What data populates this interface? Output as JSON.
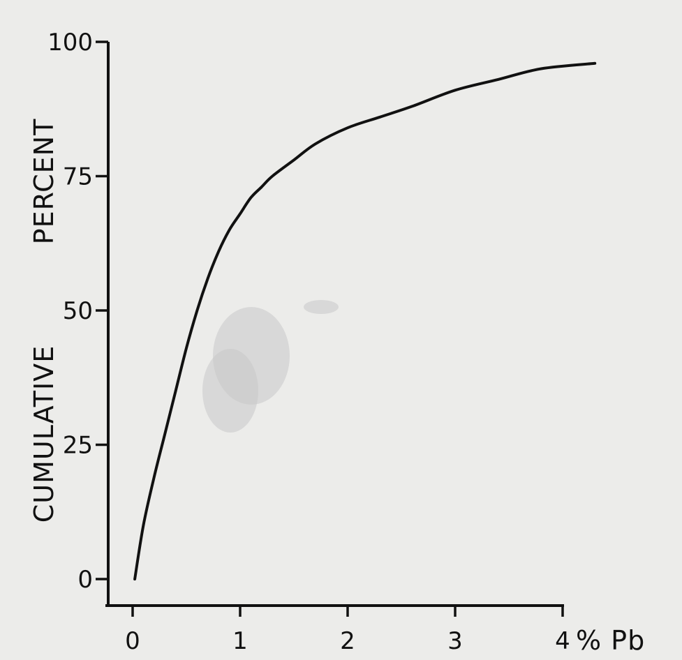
{
  "chart_data": {
    "type": "line",
    "xlabel": "% Pb",
    "ylabel_parts": [
      "CUMULATIVE",
      "PERCENT"
    ],
    "xlim": [
      0,
      4
    ],
    "ylim": [
      0,
      100
    ],
    "x_ticks": [
      0,
      1,
      2,
      3,
      4
    ],
    "x_tick_labels": [
      "0",
      "1",
      "2",
      "3",
      "4"
    ],
    "y_ticks": [
      0,
      25,
      50,
      75,
      100
    ],
    "y_tick_labels": [
      "0",
      "25",
      "50",
      "75",
      "100"
    ],
    "grid": false,
    "series": [
      {
        "x": [
          0.02,
          0.1,
          0.2,
          0.3,
          0.4,
          0.5,
          0.6,
          0.7,
          0.8,
          0.9,
          1.0,
          1.1,
          1.2,
          1.3,
          1.5,
          1.7,
          2.0,
          2.3,
          2.6,
          3.0,
          3.4,
          3.8,
          4.3
        ],
        "y": [
          0,
          10,
          19,
          27,
          35,
          43,
          50,
          56,
          61,
          65,
          68,
          71,
          73,
          75,
          78,
          81,
          84,
          86,
          88,
          91,
          93,
          95,
          96
        ]
      }
    ]
  }
}
